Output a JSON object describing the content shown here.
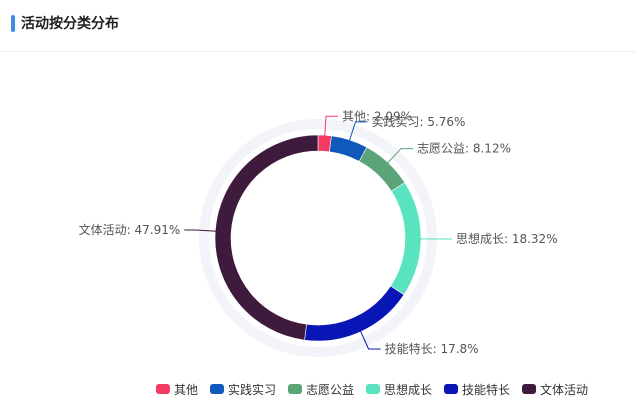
{
  "header": {
    "title": "活动按分类分布"
  },
  "chart_data": {
    "type": "pie",
    "variant": "donut",
    "categories": [
      "其他",
      "实践实习",
      "志愿公益",
      "思想成长",
      "技能特长",
      "文体活动"
    ],
    "values": [
      2.09,
      5.76,
      8.12,
      18.32,
      17.8,
      47.91
    ],
    "data_labels": [
      "其他: 2.09%",
      "实践实习: 5.76%",
      "志愿公益: 8.12%",
      "思想成长: 18.32%",
      "技能特长: 17.8%",
      "文体活动: 47.91%"
    ],
    "colors": [
      "#f33a62",
      "#1058ba",
      "#5aa477",
      "#59e3bf",
      "#0816b5",
      "#3e1a3d"
    ],
    "track_color": "#f2f4fa",
    "legend": {
      "position": "bottom-right",
      "items": [
        "其他",
        "实践实习",
        "志愿公益",
        "思想成长",
        "技能特长",
        "文体活动"
      ]
    }
  }
}
